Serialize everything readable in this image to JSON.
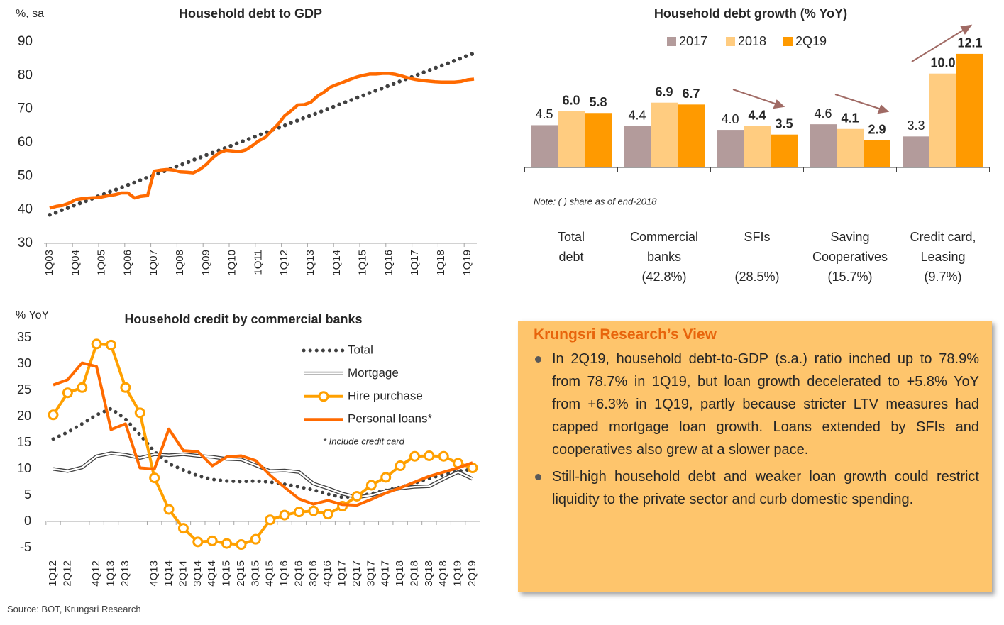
{
  "chart_data": [
    {
      "type": "line",
      "title": "Household debt to GDP",
      "ylabel": "%, sa",
      "categories": [
        "1Q03",
        null,
        null,
        null,
        "1Q04",
        null,
        null,
        null,
        "1Q05",
        null,
        null,
        null,
        "1Q06",
        null,
        null,
        null,
        "1Q07",
        null,
        null,
        null,
        "1Q08",
        null,
        null,
        null,
        "1Q09",
        null,
        null,
        null,
        "1Q10",
        null,
        null,
        null,
        "1Q11",
        null,
        null,
        null,
        "1Q12",
        null,
        null,
        null,
        "1Q13",
        null,
        null,
        null,
        "1Q14",
        null,
        null,
        null,
        "1Q15",
        null,
        null,
        null,
        "1Q16",
        null,
        null,
        null,
        "1Q17",
        null,
        null,
        null,
        "1Q18",
        null,
        null,
        null,
        "1Q19",
        null
      ],
      "ylim": [
        30,
        90
      ],
      "yticks": [
        30,
        40,
        50,
        60,
        70,
        80,
        90
      ],
      "series": [
        {
          "color": "#404040",
          "line_style": "dotted",
          "values": [
            38.5,
            39.2,
            40.0,
            40.7,
            41.5,
            42.2,
            42.9,
            43.7,
            44.4,
            45.2,
            45.9,
            46.6,
            47.4,
            48.1,
            48.9,
            49.6,
            50.3,
            51.1,
            51.8,
            52.6,
            53.3,
            54.0,
            54.8,
            55.5,
            56.3,
            57.0,
            57.7,
            58.5,
            59.2,
            60.0,
            60.7,
            61.4,
            62.2,
            62.9,
            63.7,
            64.4,
            65.1,
            65.9,
            66.6,
            67.4,
            68.1,
            68.8,
            69.6,
            70.3,
            71.1,
            71.8,
            72.5,
            73.3,
            74.0,
            74.8,
            75.5,
            76.2,
            77.0,
            77.7,
            78.5,
            79.2,
            79.9,
            80.7,
            81.4,
            82.2,
            82.9,
            83.6,
            84.4,
            85.1,
            85.9,
            86.6
          ]
        },
        {
          "color": "#ff6a00",
          "line_style": "solid",
          "values": [
            40.5,
            41.0,
            41.3,
            42.0,
            43.0,
            43.3,
            43.5,
            43.6,
            43.8,
            44.2,
            44.5,
            45.0,
            45.0,
            43.5,
            44.0,
            44.2,
            51.5,
            51.8,
            52.0,
            51.8,
            51.3,
            51.2,
            51.0,
            52.0,
            53.5,
            55.5,
            57.0,
            57.7,
            57.5,
            57.3,
            57.8,
            59.0,
            60.5,
            61.5,
            63.5,
            65.5,
            68.0,
            69.5,
            71.2,
            71.3,
            72.0,
            73.8,
            75.0,
            76.5,
            77.3,
            78.0,
            78.8,
            79.5,
            80.0,
            80.4,
            80.4,
            80.6,
            80.6,
            80.3,
            79.8,
            79.2,
            78.8,
            78.5,
            78.3,
            78.1,
            78.0,
            78.0,
            78.0,
            78.2,
            78.7,
            78.9
          ]
        }
      ]
    },
    {
      "type": "bar",
      "title": "Household debt growth (% YoY)",
      "categories": [
        [
          "Total",
          "debt"
        ],
        [
          "Commercial",
          "banks"
        ],
        [
          "SFIs"
        ],
        [
          "Saving",
          "Cooperatives"
        ],
        [
          "Credit card,",
          "Leasing"
        ]
      ],
      "shares": [
        null,
        "(42.8%)",
        "(28.5%)",
        "(15.7%)",
        "(9.7%)"
      ],
      "note": "Note: (  ) share as of end-2018",
      "ylim": [
        0,
        13
      ],
      "series": [
        {
          "name": "2017",
          "color": "#b39b9b",
          "label_color": "#595959",
          "values": [
            4.5,
            4.4,
            4.0,
            4.6,
            3.3
          ],
          "value_labels": [
            "4.5",
            "4.4",
            "4.0",
            "4.6",
            "3.3"
          ]
        },
        {
          "name": "2018",
          "color": "#ffcc80",
          "label_color": "#f7941d",
          "values": [
            6.0,
            6.9,
            4.4,
            4.1,
            10.0
          ],
          "value_labels": [
            "6.0",
            "6.9",
            "4.4",
            "4.1",
            "10.0"
          ]
        },
        {
          "name": "2Q19",
          "color": "#ff9a00",
          "label_color": "#f7941d",
          "values": [
            5.8,
            6.7,
            3.5,
            2.9,
            12.1
          ],
          "value_labels": [
            "5.8",
            "6.7",
            "3.5",
            "2.9",
            "12.1"
          ]
        }
      ]
    },
    {
      "type": "line",
      "title": "Household credit by commercial banks",
      "ylabel": "% YoY",
      "footnote": "* Include credit card",
      "categories": [
        "1Q12",
        "2Q12",
        null,
        "4Q12",
        "1Q13",
        "2Q13",
        null,
        "4Q13",
        "1Q14",
        "2Q14",
        "3Q14",
        "4Q14",
        "1Q15",
        "2Q15",
        "3Q15",
        "4Q15",
        "1Q16",
        "2Q16",
        "3Q16",
        "4Q16",
        "1Q17",
        "2Q17",
        "3Q17",
        "4Q17",
        "1Q18",
        "2Q18",
        "3Q18",
        "4Q18",
        "1Q19",
        "2Q19"
      ],
      "ylim": [
        -5,
        35
      ],
      "yticks": [
        -5,
        0,
        5,
        10,
        15,
        20,
        25,
        30,
        35
      ],
      "series": [
        {
          "name": "Total",
          "color": "#404040",
          "line_style": "dotted",
          "values": [
            15.7,
            17.0,
            18.6,
            20.3,
            21.5,
            19.5,
            16.5,
            13.3,
            11.0,
            9.8,
            8.7,
            8.0,
            7.7,
            7.6,
            7.7,
            7.5,
            7.1,
            6.6,
            6.0,
            5.2,
            4.6,
            4.8,
            5.3,
            5.9,
            6.5,
            7.3,
            8.2,
            8.9,
            9.6,
            9.9
          ]
        },
        {
          "name": "Mortgage",
          "color": "#404040",
          "line_style": "double",
          "values": [
            10.0,
            9.6,
            10.3,
            12.4,
            13.0,
            12.7,
            12.1,
            12.8,
            12.6,
            12.8,
            12.5,
            12.3,
            11.9,
            11.8,
            10.7,
            9.6,
            9.7,
            9.4,
            7.2,
            6.3,
            5.3,
            4.6,
            5.0,
            5.8,
            6.3,
            6.6,
            6.7,
            8.1,
            9.4,
            8.1
          ]
        },
        {
          "name": "Hire purchase",
          "color": "#ffa000",
          "line_style": "marker",
          "values": [
            20.3,
            24.5,
            25.5,
            33.8,
            33.6,
            25.5,
            20.7,
            8.3,
            2.3,
            -1.3,
            -3.9,
            -3.7,
            -4.2,
            -4.4,
            -3.4,
            0.3,
            1.2,
            1.8,
            2.0,
            1.4,
            2.9,
            4.8,
            6.9,
            8.4,
            10.6,
            12.4,
            12.5,
            12.4,
            11.1,
            10.2
          ]
        },
        {
          "name": "Personal loans*",
          "color": "#ff6a00",
          "line_style": "solid",
          "values": [
            26.0,
            27.0,
            30.2,
            29.5,
            17.5,
            18.6,
            10.2,
            10.0,
            17.6,
            13.5,
            13.3,
            10.6,
            12.3,
            12.5,
            11.6,
            8.8,
            6.5,
            4.3,
            3.3,
            4.0,
            3.2,
            3.1,
            4.2,
            5.4,
            6.4,
            7.5,
            8.6,
            9.4,
            10.2,
            11.2
          ]
        }
      ]
    }
  ],
  "view": {
    "title": "Krungsri Research’s View",
    "bullets": [
      "In 2Q19, household debt-to-GDP (s.a.) ratio inched up to 78.9% from 78.7% in 1Q19, but loan growth decelerated to +5.8% YoY from +6.3% in 1Q19, partly because stricter LTV measures had capped mortgage loan growth. Loans extended by SFIs and cooperatives also grew at a slower pace.",
      "Still-high household debt and weaker loan growth could restrict liquidity to the private sector and curb domestic spending."
    ]
  },
  "source": "Source: BOT, Krungsri Research"
}
